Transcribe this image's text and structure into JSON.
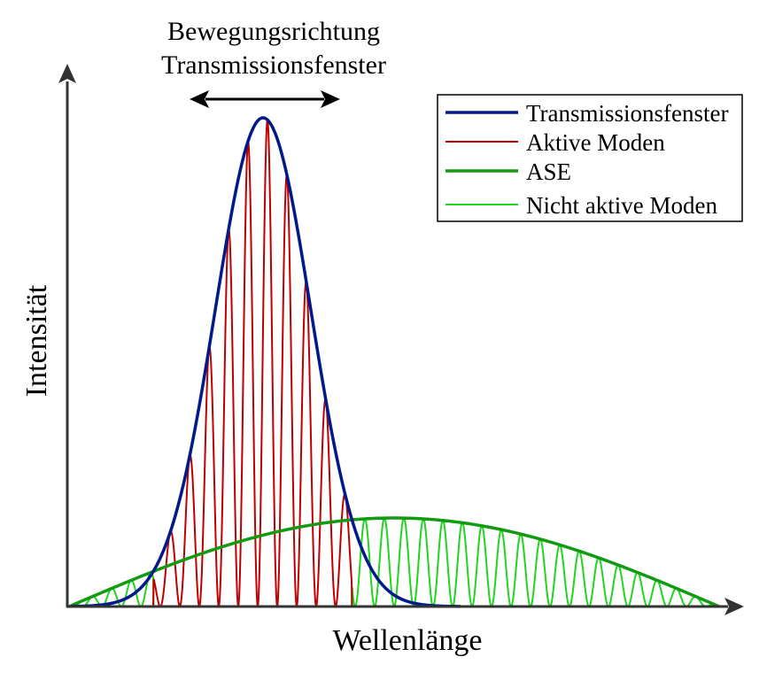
{
  "title_line1": "Bewegungsrichtung",
  "title_line2": "Transmissionsfenster",
  "xlabel": "Wellenlänge",
  "ylabel": "Intensität",
  "legend": [
    {
      "label": "Transmissionsfenster",
      "color": "#001a8c"
    },
    {
      "label": "Aktive Moden",
      "color": "#c00000"
    },
    {
      "label": "ASE",
      "color": "#129a12"
    },
    {
      "label": "Nicht aktive Moden",
      "color": "#21d421"
    }
  ],
  "colors": {
    "window": "#001a8c",
    "active": "#c00000",
    "ase": "#129a12",
    "inactive": "#21d421",
    "axis": "#333333"
  }
}
